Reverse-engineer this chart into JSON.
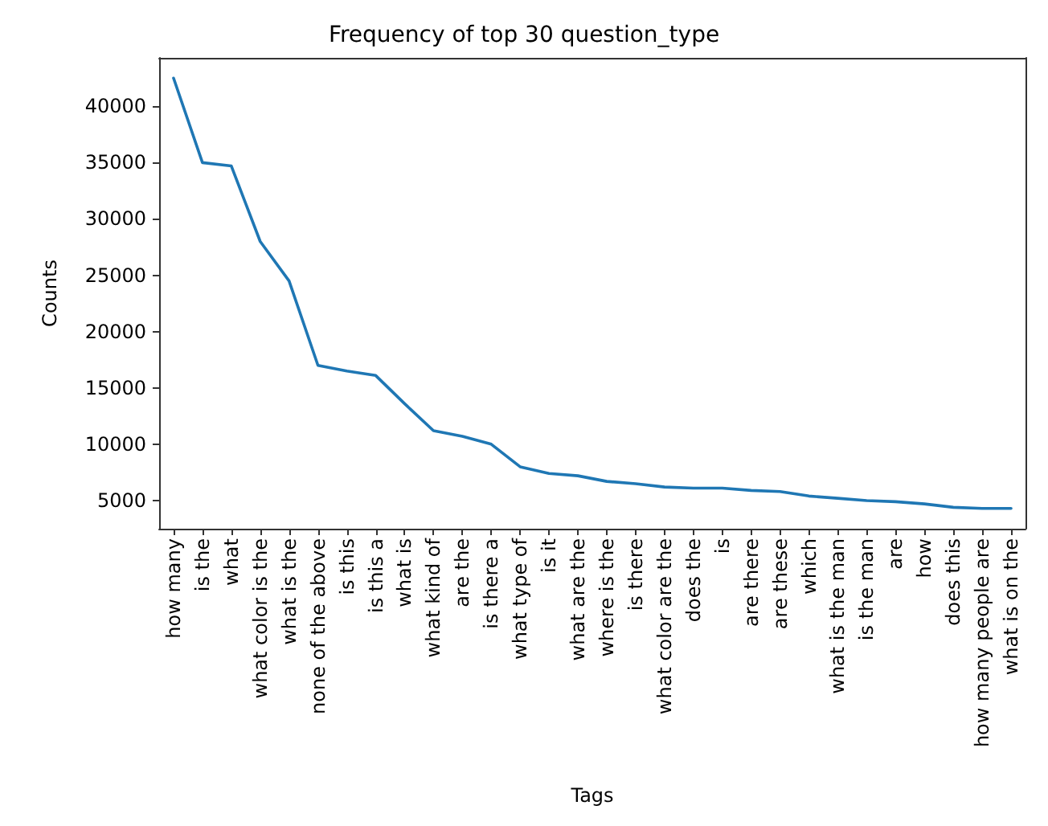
{
  "chart_data": {
    "type": "line",
    "title": "Frequency of top 30 question_type",
    "xlabel": "Tags",
    "ylabel": "Counts",
    "categories": [
      "how many",
      "is the",
      "what",
      "what color is the",
      "what is the",
      "none of the above",
      "is this",
      "is this a",
      "what is",
      "what kind of",
      "are the",
      "is there a",
      "what type of",
      "is it",
      "what are the",
      "where is the",
      "is there",
      "what color are the",
      "does the",
      "is",
      "are there",
      "are these",
      "which",
      "what is the man",
      "is the man",
      "are",
      "how",
      "does this",
      "how many people are",
      "what is on the"
    ],
    "series": [
      {
        "color": "#1f77b4",
        "values": [
          42500,
          35000,
          34700,
          28000,
          24500,
          17000,
          16500,
          16100,
          13600,
          11200,
          10700,
          10000,
          8000,
          7400,
          7200,
          6700,
          6500,
          6200,
          6100,
          6100,
          5900,
          5800,
          5400,
          5200,
          5000,
          4900,
          4700,
          4400,
          4300,
          4300
        ]
      }
    ],
    "ylim": [
      2500,
      44300
    ],
    "yticks": [
      5000,
      10000,
      15000,
      20000,
      25000,
      30000,
      35000,
      40000
    ],
    "grid": false,
    "marker": "none",
    "line_style": "solid"
  }
}
